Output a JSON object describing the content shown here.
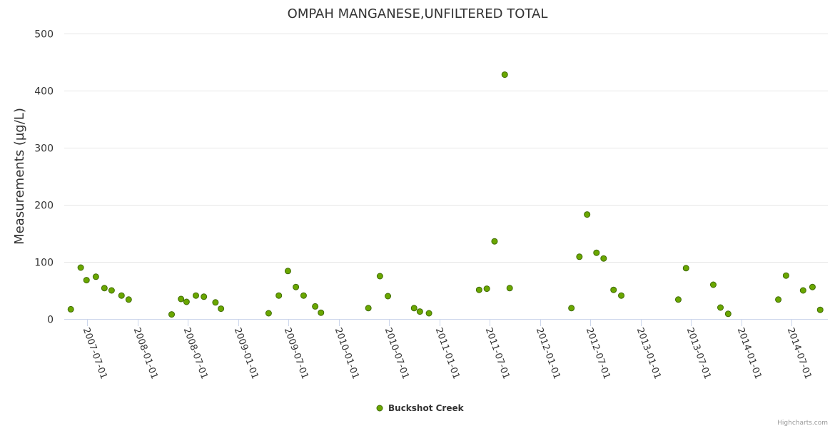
{
  "chart_data": {
    "type": "scatter",
    "title": "OMPAH MANGANESE,UNFILTERED TOTAL",
    "xlabel": "",
    "ylabel": "Measurements (µg/L)",
    "ylim": [
      0,
      500
    ],
    "yticks": [
      0,
      100,
      200,
      300,
      400,
      500
    ],
    "xticks": [
      "2007-07-01",
      "2008-01-01",
      "2008-07-01",
      "2009-01-01",
      "2009-07-01",
      "2010-01-01",
      "2010-07-01",
      "2011-01-01",
      "2011-07-01",
      "2012-01-01",
      "2012-07-01",
      "2013-01-01",
      "2013-07-01",
      "2014-01-01",
      "2014-07-01"
    ],
    "grid": true,
    "legend_position": "bottom-center",
    "credits": "Highcharts.com",
    "marker_fill": "#6aa700",
    "marker_stroke": "#3f6b00",
    "series": [
      {
        "name": "Buckshot Creek",
        "points": [
          [
            "2007-05-03",
            17
          ],
          [
            "2007-06-08",
            90
          ],
          [
            "2007-06-29",
            68
          ],
          [
            "2007-08-02",
            74
          ],
          [
            "2007-09-02",
            54
          ],
          [
            "2007-09-28",
            50
          ],
          [
            "2007-11-03",
            41
          ],
          [
            "2007-11-29",
            34
          ],
          [
            "2008-05-03",
            8
          ],
          [
            "2008-06-06",
            35
          ],
          [
            "2008-06-26",
            30
          ],
          [
            "2008-07-30",
            41
          ],
          [
            "2008-08-28",
            39
          ],
          [
            "2008-10-09",
            29
          ],
          [
            "2008-10-29",
            18
          ],
          [
            "2009-04-20",
            10
          ],
          [
            "2009-05-27",
            41
          ],
          [
            "2009-06-29",
            84
          ],
          [
            "2009-07-28",
            56
          ],
          [
            "2009-08-25",
            41
          ],
          [
            "2009-10-06",
            22
          ],
          [
            "2009-10-27",
            11
          ],
          [
            "2010-04-17",
            19
          ],
          [
            "2010-05-29",
            75
          ],
          [
            "2010-06-27",
            40
          ],
          [
            "2010-09-30",
            19
          ],
          [
            "2010-10-21",
            13
          ],
          [
            "2010-11-23",
            10
          ],
          [
            "2011-05-24",
            51
          ],
          [
            "2011-06-21",
            53
          ],
          [
            "2011-07-19",
            136
          ],
          [
            "2011-08-25",
            428
          ],
          [
            "2011-09-12",
            54
          ],
          [
            "2012-04-23",
            19
          ],
          [
            "2012-05-22",
            109
          ],
          [
            "2012-06-19",
            183
          ],
          [
            "2012-07-23",
            116
          ],
          [
            "2012-08-18",
            106
          ],
          [
            "2012-09-23",
            51
          ],
          [
            "2012-10-21",
            41
          ],
          [
            "2013-05-16",
            34
          ],
          [
            "2013-06-13",
            89
          ],
          [
            "2013-09-20",
            60
          ],
          [
            "2013-10-16",
            20
          ],
          [
            "2013-11-13",
            9
          ],
          [
            "2014-05-14",
            34
          ],
          [
            "2014-06-11",
            76
          ],
          [
            "2014-08-12",
            50
          ],
          [
            "2014-09-15",
            56
          ],
          [
            "2014-10-13",
            16
          ]
        ]
      }
    ]
  }
}
